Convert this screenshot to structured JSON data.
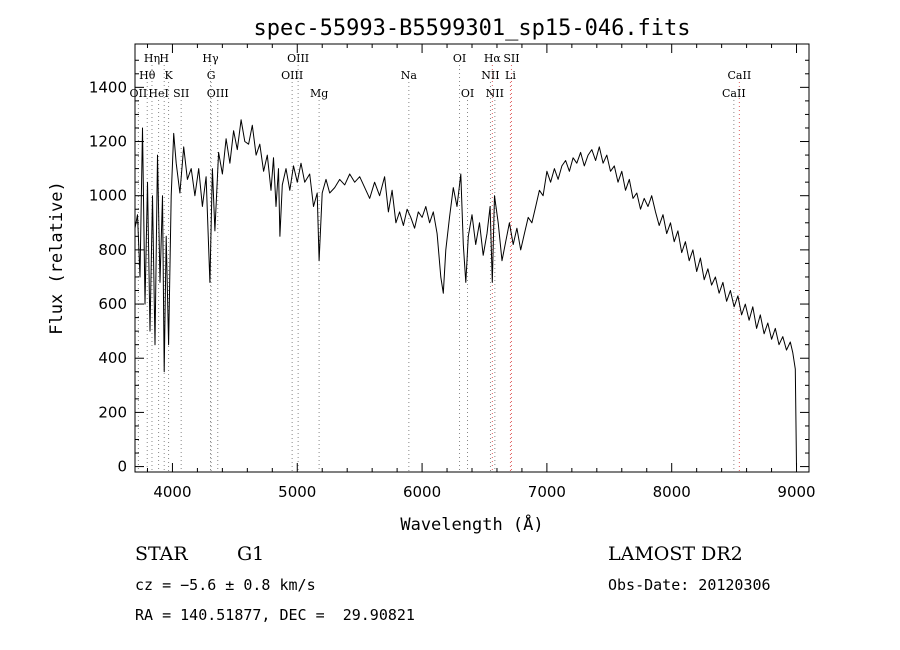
{
  "chart_data": {
    "type": "line",
    "title": "spec-55993-B5599301_sp15-046.fits",
    "xlabel": "Wavelength (Å)",
    "ylabel": "Flux (relative)",
    "xlim": [
      3700,
      9100
    ],
    "ylim": [
      -20,
      1560
    ],
    "x_ticks": [
      "4000",
      "5000",
      "6000",
      "7000",
      "8000",
      "9000"
    ],
    "x_tick_values": [
      4000,
      5000,
      6000,
      7000,
      8000,
      9000
    ],
    "y_ticks": [
      "0",
      "200",
      "400",
      "600",
      "800",
      "1000",
      "1200",
      "1400"
    ],
    "y_tick_values": [
      0,
      200,
      400,
      600,
      800,
      1000,
      1200,
      1400
    ],
    "grid": false,
    "line_color": "#000000",
    "marker_color": "#e06060",
    "line_markers": [
      {
        "label": "OII",
        "wavelength": 3727,
        "row": 3,
        "style": "dotted-gray"
      },
      {
        "label": "Hθ",
        "wavelength": 3798,
        "row": 2,
        "style": "dotted-gray"
      },
      {
        "label": "Hη",
        "wavelength": 3836,
        "row": 1,
        "style": "dotted-gray"
      },
      {
        "label": "HeI",
        "wavelength": 3889,
        "row": 3,
        "style": "dotted-gray"
      },
      {
        "label": "H",
        "wavelength": 3934,
        "row": 1,
        "style": "dotted-gray"
      },
      {
        "label": "K",
        "wavelength": 3969,
        "row": 2,
        "style": "dotted-gray"
      },
      {
        "label": "SII",
        "wavelength": 4070,
        "row": 3,
        "style": "dotted-gray"
      },
      {
        "label": "Hγ",
        "wavelength": 4305,
        "row": 1,
        "style": "dotted-gray"
      },
      {
        "label": "G",
        "wavelength": 4310,
        "row": 2,
        "style": "dotted-gray"
      },
      {
        "label": "OIII",
        "wavelength": 4363,
        "row": 3,
        "style": "dotted-gray"
      },
      {
        "label": "OIII",
        "wavelength": 4959,
        "row": 2,
        "style": "dotted-gray"
      },
      {
        "label": "OIII",
        "wavelength": 5007,
        "row": 1,
        "style": "dotted-gray"
      },
      {
        "label": "Mg",
        "wavelength": 5175,
        "row": 3,
        "style": "dotted-gray"
      },
      {
        "label": "Na",
        "wavelength": 5894,
        "row": 2,
        "style": "dotted-gray"
      },
      {
        "label": "OI",
        "wavelength": 6300,
        "row": 1,
        "style": "dotted-gray"
      },
      {
        "label": "OI",
        "wavelength": 6364,
        "row": 3,
        "style": "dotted-gray"
      },
      {
        "label": "Hα",
        "wavelength": 6563,
        "row": 1,
        "style": "dotted-red"
      },
      {
        "label": "NII",
        "wavelength": 6548,
        "row": 2,
        "style": "dotted-gray"
      },
      {
        "label": "NII",
        "wavelength": 6583,
        "row": 3,
        "style": "dotted-gray"
      },
      {
        "label": "SII",
        "wavelength": 6716,
        "row": 1,
        "style": "dotted-red"
      },
      {
        "label": "Li",
        "wavelength": 6708,
        "row": 2,
        "style": "dotted-red"
      },
      {
        "label": "CaII",
        "wavelength": 8542,
        "row": 2,
        "style": "dotted-red"
      },
      {
        "label": "CaII",
        "wavelength": 8498,
        "row": 3,
        "style": "dotted-gray"
      }
    ],
    "spectrum_points": [
      [
        3700,
        880
      ],
      [
        3720,
        930
      ],
      [
        3740,
        700
      ],
      [
        3760,
        1250
      ],
      [
        3780,
        600
      ],
      [
        3800,
        1050
      ],
      [
        3820,
        500
      ],
      [
        3840,
        1000
      ],
      [
        3860,
        450
      ],
      [
        3880,
        1150
      ],
      [
        3900,
        680
      ],
      [
        3920,
        1000
      ],
      [
        3934,
        350
      ],
      [
        3950,
        850
      ],
      [
        3969,
        450
      ],
      [
        3990,
        1000
      ],
      [
        4010,
        1230
      ],
      [
        4030,
        1120
      ],
      [
        4060,
        1010
      ],
      [
        4090,
        1180
      ],
      [
        4120,
        1060
      ],
      [
        4150,
        1100
      ],
      [
        4180,
        1000
      ],
      [
        4210,
        1100
      ],
      [
        4240,
        960
      ],
      [
        4270,
        1070
      ],
      [
        4300,
        680
      ],
      [
        4320,
        1100
      ],
      [
        4340,
        870
      ],
      [
        4370,
        1160
      ],
      [
        4400,
        1080
      ],
      [
        4430,
        1210
      ],
      [
        4460,
        1120
      ],
      [
        4490,
        1240
      ],
      [
        4520,
        1170
      ],
      [
        4550,
        1280
      ],
      [
        4580,
        1200
      ],
      [
        4610,
        1190
      ],
      [
        4640,
        1260
      ],
      [
        4670,
        1150
      ],
      [
        4700,
        1190
      ],
      [
        4730,
        1090
      ],
      [
        4760,
        1150
      ],
      [
        4790,
        1020
      ],
      [
        4810,
        1140
      ],
      [
        4830,
        960
      ],
      [
        4850,
        1100
      ],
      [
        4861,
        850
      ],
      [
        4880,
        1040
      ],
      [
        4910,
        1100
      ],
      [
        4940,
        1020
      ],
      [
        4970,
        1110
      ],
      [
        5000,
        1050
      ],
      [
        5030,
        1120
      ],
      [
        5060,
        1050
      ],
      [
        5100,
        1080
      ],
      [
        5130,
        960
      ],
      [
        5160,
        1010
      ],
      [
        5175,
        760
      ],
      [
        5200,
        1010
      ],
      [
        5230,
        1060
      ],
      [
        5260,
        1010
      ],
      [
        5300,
        1030
      ],
      [
        5340,
        1060
      ],
      [
        5380,
        1040
      ],
      [
        5420,
        1080
      ],
      [
        5460,
        1050
      ],
      [
        5500,
        1070
      ],
      [
        5540,
        1030
      ],
      [
        5580,
        990
      ],
      [
        5620,
        1050
      ],
      [
        5660,
        1000
      ],
      [
        5700,
        1070
      ],
      [
        5730,
        940
      ],
      [
        5760,
        1020
      ],
      [
        5790,
        900
      ],
      [
        5820,
        940
      ],
      [
        5850,
        890
      ],
      [
        5880,
        950
      ],
      [
        5910,
        920
      ],
      [
        5940,
        880
      ],
      [
        5970,
        940
      ],
      [
        6000,
        920
      ],
      [
        6030,
        960
      ],
      [
        6060,
        900
      ],
      [
        6090,
        940
      ],
      [
        6120,
        860
      ],
      [
        6150,
        700
      ],
      [
        6170,
        640
      ],
      [
        6190,
        800
      ],
      [
        6220,
        920
      ],
      [
        6250,
        1030
      ],
      [
        6280,
        960
      ],
      [
        6310,
        1080
      ],
      [
        6330,
        820
      ],
      [
        6350,
        680
      ],
      [
        6370,
        850
      ],
      [
        6400,
        930
      ],
      [
        6430,
        820
      ],
      [
        6460,
        900
      ],
      [
        6490,
        780
      ],
      [
        6520,
        860
      ],
      [
        6545,
        960
      ],
      [
        6563,
        680
      ],
      [
        6580,
        1000
      ],
      [
        6610,
        900
      ],
      [
        6640,
        760
      ],
      [
        6670,
        830
      ],
      [
        6700,
        900
      ],
      [
        6730,
        820
      ],
      [
        6760,
        880
      ],
      [
        6790,
        800
      ],
      [
        6820,
        860
      ],
      [
        6850,
        920
      ],
      [
        6880,
        900
      ],
      [
        6910,
        960
      ],
      [
        6940,
        1020
      ],
      [
        6970,
        1000
      ],
      [
        7000,
        1090
      ],
      [
        7030,
        1050
      ],
      [
        7060,
        1100
      ],
      [
        7090,
        1060
      ],
      [
        7120,
        1110
      ],
      [
        7150,
        1130
      ],
      [
        7180,
        1090
      ],
      [
        7210,
        1140
      ],
      [
        7240,
        1120
      ],
      [
        7270,
        1160
      ],
      [
        7300,
        1110
      ],
      [
        7330,
        1150
      ],
      [
        7360,
        1170
      ],
      [
        7390,
        1130
      ],
      [
        7420,
        1180
      ],
      [
        7450,
        1120
      ],
      [
        7480,
        1150
      ],
      [
        7510,
        1090
      ],
      [
        7540,
        1110
      ],
      [
        7570,
        1050
      ],
      [
        7600,
        1090
      ],
      [
        7630,
        1020
      ],
      [
        7660,
        1060
      ],
      [
        7690,
        990
      ],
      [
        7720,
        1010
      ],
      [
        7750,
        950
      ],
      [
        7780,
        990
      ],
      [
        7810,
        960
      ],
      [
        7840,
        1000
      ],
      [
        7870,
        940
      ],
      [
        7900,
        890
      ],
      [
        7930,
        930
      ],
      [
        7960,
        860
      ],
      [
        7990,
        900
      ],
      [
        8020,
        830
      ],
      [
        8050,
        870
      ],
      [
        8080,
        790
      ],
      [
        8110,
        830
      ],
      [
        8140,
        760
      ],
      [
        8170,
        800
      ],
      [
        8200,
        720
      ],
      [
        8230,
        770
      ],
      [
        8260,
        690
      ],
      [
        8290,
        730
      ],
      [
        8320,
        670
      ],
      [
        8350,
        700
      ],
      [
        8380,
        640
      ],
      [
        8410,
        680
      ],
      [
        8440,
        610
      ],
      [
        8470,
        650
      ],
      [
        8500,
        590
      ],
      [
        8530,
        630
      ],
      [
        8560,
        560
      ],
      [
        8590,
        600
      ],
      [
        8620,
        540
      ],
      [
        8650,
        590
      ],
      [
        8680,
        510
      ],
      [
        8710,
        560
      ],
      [
        8740,
        490
      ],
      [
        8770,
        530
      ],
      [
        8800,
        470
      ],
      [
        8830,
        510
      ],
      [
        8860,
        450
      ],
      [
        8890,
        480
      ],
      [
        8920,
        430
      ],
      [
        8950,
        460
      ],
      [
        8970,
        420
      ],
      [
        8990,
        360
      ],
      [
        9000,
        0
      ]
    ]
  },
  "info": {
    "object_class": "STAR",
    "subclass": "G1",
    "redshift": "cz = −5.6 ± 0.8 km/s",
    "coords": "RA = 140.51877, DEC =  29.90821",
    "survey": "LAMOST DR2",
    "obs_date": "Obs-Date: 20120306"
  }
}
